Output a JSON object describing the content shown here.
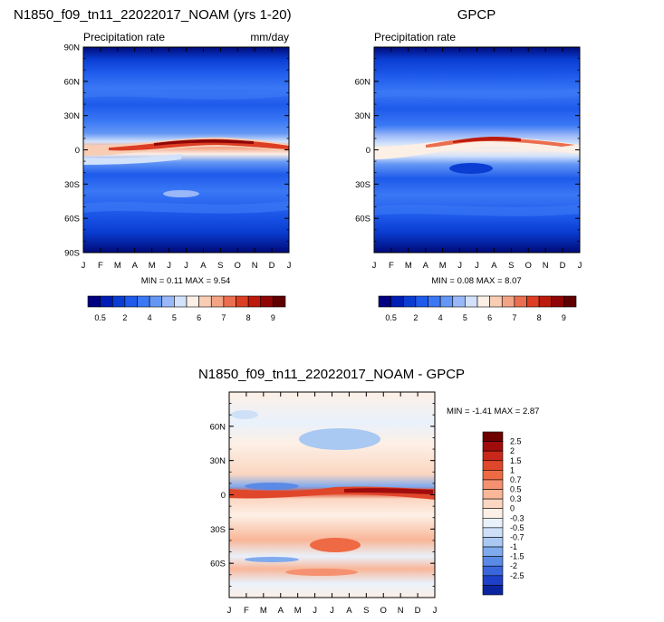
{
  "chart_data": [
    {
      "type": "heatmap",
      "title": "N1850_f09_tn11_22022017_NOAM (yrs 1-20)",
      "subtitle_left": "Precipitation rate",
      "subtitle_right": "mm/day",
      "stats": "MIN =  0.11 MAX =  9.54",
      "x_tick_labels": [
        "J",
        "F",
        "M",
        "A",
        "M",
        "J",
        "J",
        "A",
        "S",
        "O",
        "N",
        "D",
        "J"
      ],
      "y_tick_labels": [
        "90N",
        "60N",
        "30N",
        "0",
        "30S",
        "60S",
        "90S"
      ],
      "ylim": [
        -90,
        90
      ],
      "colorbar_labels": [
        "0.5",
        "2",
        "4",
        "5",
        "6",
        "7",
        "8",
        "9"
      ],
      "colorbar_levels": [
        0.5,
        1,
        2,
        3,
        4,
        4.5,
        5,
        5.5,
        6,
        6.5,
        7,
        7.5,
        8,
        8.5,
        9
      ],
      "colorbar_colors": [
        "#000080",
        "#001eb4",
        "#0a3dd2",
        "#1e5aeb",
        "#3a78f5",
        "#6497f5",
        "#9ab8f8",
        "#d2e2fb",
        "#fcefe6",
        "#f8cdb4",
        "#f3a485",
        "#ea6e4f",
        "#dc3e24",
        "#bb1a0c",
        "#8f0505",
        "#5f0000"
      ],
      "colormap": "blue-white-red",
      "features": [
        "ITCZ maximum near equator peaking Jul-Sep",
        "storm-track bands near 45N and 45S",
        "dry subtropics near 20-30S"
      ]
    },
    {
      "type": "heatmap",
      "title": "GPCP",
      "subtitle_left": "Precipitation rate",
      "stats": "MIN =  0.08 MAX =  8.07",
      "x_tick_labels": [
        "J",
        "F",
        "M",
        "A",
        "M",
        "J",
        "J",
        "A",
        "S",
        "O",
        "N",
        "D",
        "J"
      ],
      "y_tick_labels": [
        "60N",
        "30N",
        "0",
        "30S",
        "60S"
      ],
      "ylim": [
        -90,
        90
      ],
      "colorbar_labels": [
        "0.5",
        "2",
        "4",
        "5",
        "6",
        "7",
        "8",
        "9"
      ],
      "colormap": "blue-white-red"
    },
    {
      "type": "heatmap",
      "title": "N1850_f09_tn11_22022017_NOAM - GPCP",
      "stats": "MIN = -1.41 MAX =  2.87",
      "x_tick_labels": [
        "J",
        "F",
        "M",
        "A",
        "M",
        "J",
        "J",
        "A",
        "S",
        "O",
        "N",
        "D",
        "J"
      ],
      "y_tick_labels": [
        "60N",
        "30N",
        "0",
        "30S",
        "60S"
      ],
      "ylim": [
        -90,
        90
      ],
      "colorbar_labels": [
        "2.5",
        "2",
        "1.5",
        "1",
        "0.7",
        "0.5",
        "0.3",
        "0",
        "-0.3",
        "-0.5",
        "-0.7",
        "-1",
        "-1.5",
        "-2",
        "-2.5"
      ],
      "colorbar_colors": [
        "#6e0000",
        "#a00c0c",
        "#c8281a",
        "#e0462a",
        "#ee6a44",
        "#f59070",
        "#f9b698",
        "#fbd6c2",
        "#fdf0e6",
        "#e9f1fb",
        "#cde0f7",
        "#a9c9f2",
        "#7faaee",
        "#5a8ae6",
        "#3a66dc",
        "#1e40c8",
        "#0a24a0"
      ],
      "colormap": "diverging blue-white-red",
      "features": [
        "positive bias band along equator",
        "negative bias near 10N Mar-Jun",
        "positive bias near 40S Jun-Sep"
      ]
    }
  ]
}
